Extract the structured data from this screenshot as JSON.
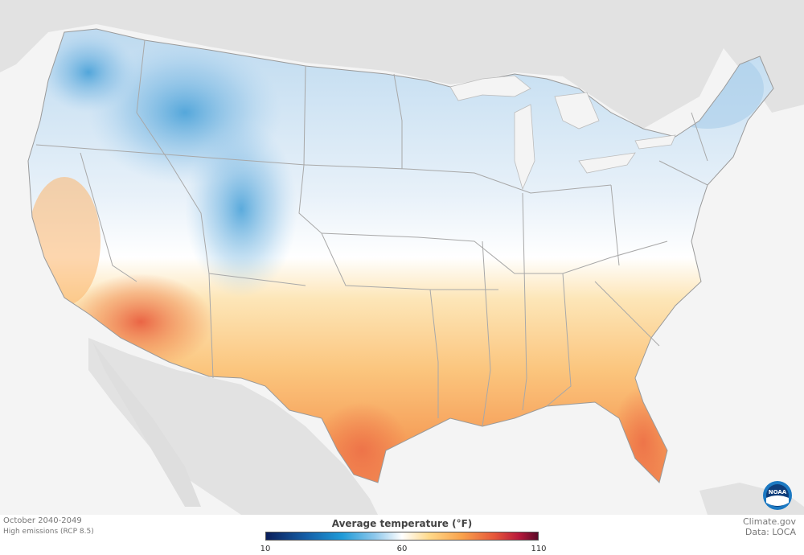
{
  "period": "October 2040-2049",
  "scenario": "High emissions (RCP 8.5)",
  "source_site": "Climate.gov",
  "source_data": "Data: LOCA",
  "legend": {
    "title": "Average temperature (°F)",
    "ticks": [
      "10",
      "60",
      "110"
    ],
    "colors": [
      "#0a1e5a",
      "#1560a8",
      "#1f9bd8",
      "#8ec8ec",
      "#ffffff",
      "#ffd98a",
      "#f9a24c",
      "#e6573a",
      "#b8193c",
      "#5a0a28"
    ]
  },
  "logo_text": "NOAA",
  "colors": {
    "land_background": "#e2e2e2",
    "ocean": "#f4f4f4",
    "state_borders": "#a8a8a8"
  }
}
